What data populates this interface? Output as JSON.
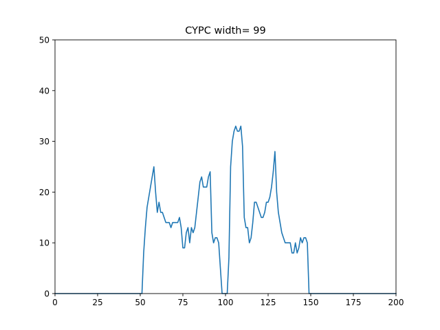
{
  "chart_data": {
    "type": "line",
    "title": "CYPC width= 99",
    "xlabel": "",
    "ylabel": "",
    "xlim": [
      0,
      200
    ],
    "ylim": [
      0,
      50
    ],
    "xticks": [
      0,
      25,
      50,
      75,
      100,
      125,
      150,
      175,
      200
    ],
    "yticks": [
      0,
      10,
      20,
      30,
      40,
      50
    ],
    "grid": false,
    "legend": "none",
    "line_color": "#1f77b4",
    "series": [
      {
        "x": [
          0,
          51,
          52,
          53,
          54,
          55,
          56,
          57,
          58,
          59,
          60,
          61,
          62,
          63,
          64,
          65,
          66,
          67,
          68,
          69,
          70,
          71,
          72,
          73,
          74,
          75,
          76,
          77,
          78,
          79,
          80,
          81,
          82,
          83,
          84,
          85,
          86,
          87,
          88,
          89,
          90,
          91,
          92,
          93,
          94,
          95,
          96,
          97,
          98,
          99,
          100,
          101,
          102,
          103,
          104,
          105,
          106,
          107,
          108,
          109,
          110,
          111,
          112,
          113,
          114,
          115,
          116,
          117,
          118,
          119,
          120,
          121,
          122,
          123,
          124,
          125,
          126,
          127,
          128,
          129,
          130,
          131,
          132,
          133,
          134,
          135,
          136,
          137,
          138,
          139,
          140,
          141,
          142,
          143,
          144,
          145,
          146,
          147,
          148,
          149,
          150,
          200
        ],
        "values": [
          0,
          0,
          8,
          13,
          17,
          19,
          21,
          23,
          25,
          20,
          16,
          18,
          16,
          16,
          15,
          14,
          14,
          14,
          13,
          14,
          14,
          14,
          14,
          15,
          13,
          9,
          9,
          12,
          13,
          10,
          13,
          12,
          13,
          16,
          19,
          22,
          23,
          21,
          21,
          21,
          23,
          24,
          12,
          10,
          11,
          11,
          10,
          5,
          0,
          0,
          0,
          0,
          7,
          25,
          30,
          32,
          33,
          32,
          32,
          33,
          29,
          15,
          13,
          13,
          10,
          11,
          14,
          18,
          18,
          17,
          16,
          15,
          15,
          16,
          18,
          18,
          19,
          21,
          24,
          28,
          20,
          16,
          14,
          12,
          11,
          10,
          10,
          10,
          10,
          8,
          8,
          10,
          8,
          9,
          11,
          10,
          11,
          11,
          10,
          0,
          0,
          0
        ]
      }
    ]
  }
}
